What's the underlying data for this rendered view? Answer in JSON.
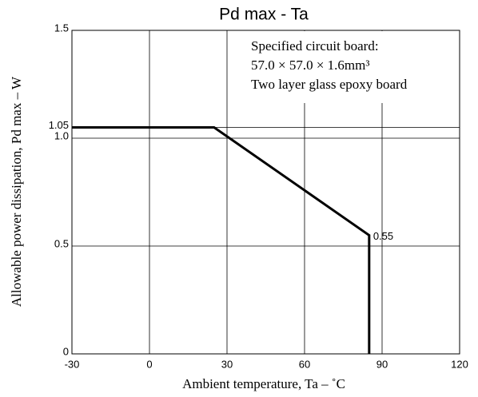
{
  "chart_data": {
    "type": "line",
    "title": "Pd max  -  Ta",
    "x_label": "Ambient temperature, Ta –  ˚C",
    "y_label": "Allowable power dissipation, Pd max – W",
    "x": [
      -30,
      25,
      85,
      85
    ],
    "values": [
      1.05,
      1.05,
      0.55,
      0
    ],
    "value_labels": [
      null,
      null,
      "0.55",
      null
    ],
    "color": "#000000",
    "xlim": [
      -30,
      120
    ],
    "xticks": [
      -30,
      0,
      30,
      60,
      90,
      120
    ],
    "ylim": [
      0,
      1.5
    ],
    "yticks": [
      0,
      0.5,
      {
        "value": 1,
        "label": "1.0"
      },
      1.05,
      {
        "value": 1.5,
        "label": "1.5"
      }
    ],
    "grid": true,
    "annotations": [
      "Specified circuit board:",
      "57.0 × 57.0 × 1.6mm³",
      "Two layer glass epoxy board"
    ]
  }
}
